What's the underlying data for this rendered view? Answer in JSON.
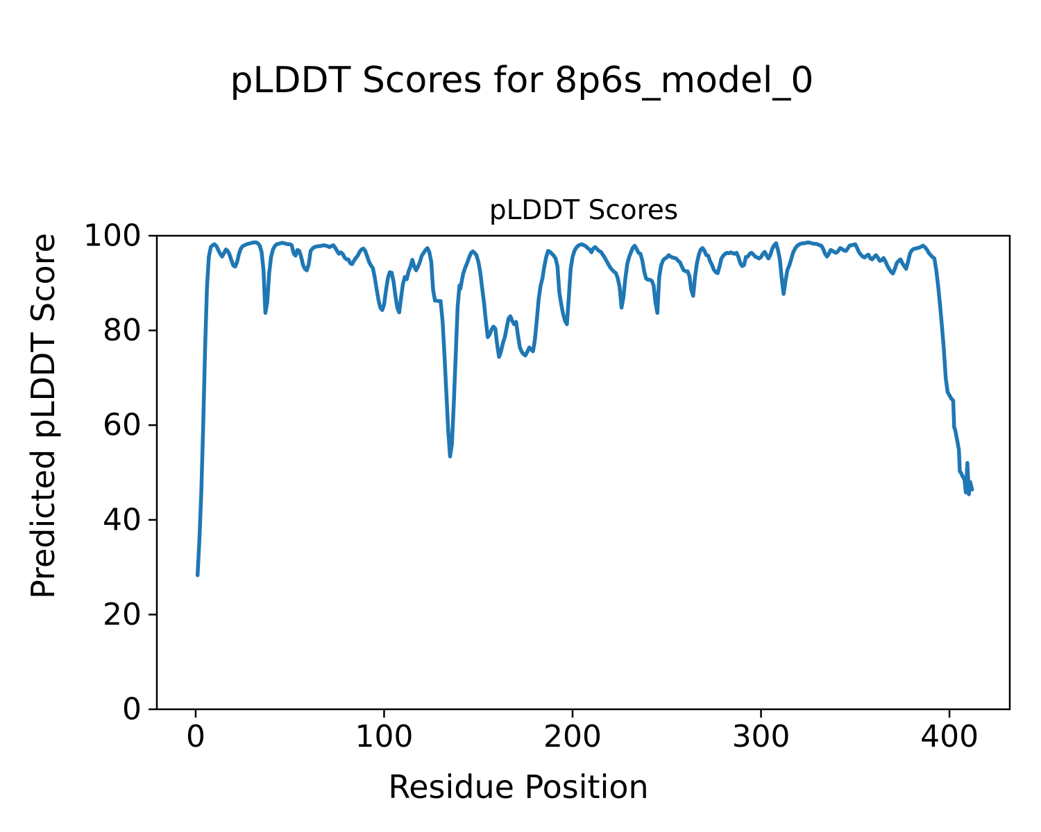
{
  "figure": {
    "title": "pLDDT Scores for 8p6s_model_0",
    "background": "#ffffff"
  },
  "chart_data": {
    "type": "line",
    "title": "pLDDT Scores",
    "xlabel": "Residue Position",
    "ylabel": "Predicted pLDDT Score",
    "line_color": "#1f77b4",
    "axis_color": "#000000",
    "xlim": [
      -20.6,
      432.0
    ],
    "ylim": [
      0,
      100
    ],
    "xticks": [
      0,
      100,
      200,
      300,
      400
    ],
    "yticks": [
      0,
      20,
      40,
      60,
      80,
      100
    ],
    "grid": false,
    "legend": null,
    "series_name": "pLDDT",
    "points": [
      [
        1,
        28.3
      ],
      [
        2,
        36
      ],
      [
        3,
        46
      ],
      [
        4,
        60
      ],
      [
        5,
        76
      ],
      [
        6,
        89
      ],
      [
        7,
        95.5
      ],
      [
        8,
        97.6
      ],
      [
        9,
        98
      ],
      [
        10,
        98.2
      ],
      [
        11,
        97.8
      ],
      [
        12,
        97
      ],
      [
        13,
        96.2
      ],
      [
        14,
        95.6
      ],
      [
        15,
        96.3
      ],
      [
        16,
        97.1
      ],
      [
        17,
        96.8
      ],
      [
        18,
        96
      ],
      [
        19,
        94.8
      ],
      [
        20,
        93.7
      ],
      [
        21,
        93.5
      ],
      [
        22,
        94.5
      ],
      [
        23,
        96.2
      ],
      [
        24,
        97.3
      ],
      [
        25,
        97.8
      ],
      [
        26,
        98
      ],
      [
        27,
        98.2
      ],
      [
        28,
        98.3
      ],
      [
        29,
        98.4
      ],
      [
        30,
        98.5
      ],
      [
        31,
        98.6
      ],
      [
        32,
        98.6
      ],
      [
        33,
        98.4
      ],
      [
        34,
        97.9
      ],
      [
        35,
        96.5
      ],
      [
        36,
        92.7
      ],
      [
        37,
        83.7
      ],
      [
        38,
        86
      ],
      [
        39,
        92
      ],
      [
        40,
        95.5
      ],
      [
        41,
        97.1
      ],
      [
        42,
        97.8
      ],
      [
        43,
        98.2
      ],
      [
        44,
        98.3
      ],
      [
        45,
        98.4
      ],
      [
        46,
        98.5
      ],
      [
        47,
        98.4
      ],
      [
        48,
        98.3
      ],
      [
        49,
        98.2
      ],
      [
        50,
        98.2
      ],
      [
        51,
        98
      ],
      [
        52,
        96.3
      ],
      [
        53,
        95.8
      ],
      [
        54,
        97
      ],
      [
        55,
        96.8
      ],
      [
        56,
        95.5
      ],
      [
        57,
        93.8
      ],
      [
        58,
        93
      ],
      [
        59,
        92.7
      ],
      [
        60,
        94
      ],
      [
        61,
        96.8
      ],
      [
        62,
        97.3
      ],
      [
        63,
        97.6
      ],
      [
        64,
        97.7
      ],
      [
        65,
        97.8
      ],
      [
        66,
        97.8
      ],
      [
        67,
        97.9
      ],
      [
        68,
        98
      ],
      [
        69,
        97.9
      ],
      [
        70,
        97.8
      ],
      [
        71,
        97.6
      ],
      [
        72,
        97.8
      ],
      [
        73,
        98
      ],
      [
        74,
        97.5
      ],
      [
        75,
        96.8
      ],
      [
        76,
        96.2
      ],
      [
        77,
        96.5
      ],
      [
        78,
        96.2
      ],
      [
        79,
        95.4
      ],
      [
        80,
        95
      ],
      [
        81,
        95
      ],
      [
        82,
        94.2
      ],
      [
        83,
        94
      ],
      [
        84,
        94.7
      ],
      [
        85,
        95.3
      ],
      [
        86,
        95.8
      ],
      [
        87,
        96.6
      ],
      [
        88,
        97.1
      ],
      [
        89,
        97.3
      ],
      [
        90,
        96.8
      ],
      [
        91,
        95.7
      ],
      [
        92,
        94.5
      ],
      [
        93,
        93.7
      ],
      [
        94,
        93.2
      ],
      [
        95,
        91.3
      ],
      [
        96,
        88.8
      ],
      [
        97,
        86.5
      ],
      [
        98,
        84.8
      ],
      [
        99,
        84.3
      ],
      [
        100,
        85.5
      ],
      [
        101,
        88.5
      ],
      [
        102,
        91
      ],
      [
        103,
        92.3
      ],
      [
        104,
        92.2
      ],
      [
        105,
        90.3
      ],
      [
        106,
        87.3
      ],
      [
        107,
        84.8
      ],
      [
        108,
        83.8
      ],
      [
        109,
        86.9
      ],
      [
        110,
        89.8
      ],
      [
        111,
        91.3
      ],
      [
        112,
        90.8
      ],
      [
        113,
        92.5
      ],
      [
        114,
        93.5
      ],
      [
        115,
        94.9
      ],
      [
        116,
        93.5
      ],
      [
        117,
        92.7
      ],
      [
        118,
        93.5
      ],
      [
        119,
        94.5
      ],
      [
        120,
        95.8
      ],
      [
        121,
        96.4
      ],
      [
        122,
        97
      ],
      [
        123,
        97.4
      ],
      [
        124,
        96.5
      ],
      [
        125,
        94.5
      ],
      [
        126,
        88.5
      ],
      [
        127,
        86.3
      ],
      [
        128,
        86.3
      ],
      [
        129,
        86.2
      ],
      [
        130,
        86.2
      ],
      [
        131,
        82
      ],
      [
        132,
        75
      ],
      [
        133,
        67
      ],
      [
        134,
        59
      ],
      [
        135,
        53.4
      ],
      [
        136,
        56
      ],
      [
        137,
        65
      ],
      [
        138,
        75
      ],
      [
        139,
        85
      ],
      [
        140,
        89.5
      ],
      [
        140.5,
        88.8
      ],
      [
        141,
        90
      ],
      [
        142,
        92
      ],
      [
        143,
        93.2
      ],
      [
        144,
        94.2
      ],
      [
        145,
        95.3
      ],
      [
        146,
        96.3
      ],
      [
        147,
        96.7
      ],
      [
        148,
        96.4
      ],
      [
        149,
        95.9
      ],
      [
        150,
        94.5
      ],
      [
        151,
        92.3
      ],
      [
        152,
        89
      ],
      [
        153,
        85.9
      ],
      [
        154,
        82
      ],
      [
        155,
        78.6
      ],
      [
        156,
        79.1
      ],
      [
        157,
        80.2
      ],
      [
        158,
        80.8
      ],
      [
        159,
        80.4
      ],
      [
        160,
        77
      ],
      [
        161,
        74.4
      ],
      [
        162,
        75.5
      ],
      [
        163,
        77.3
      ],
      [
        164,
        78.5
      ],
      [
        165,
        80.5
      ],
      [
        166,
        82.5
      ],
      [
        167,
        83
      ],
      [
        168,
        82
      ],
      [
        169,
        81.3
      ],
      [
        170,
        81.8
      ],
      [
        171,
        79
      ],
      [
        172,
        76.5
      ],
      [
        173,
        75.5
      ],
      [
        174,
        75
      ],
      [
        175,
        74.7
      ],
      [
        176,
        75.5
      ],
      [
        177,
        76.4
      ],
      [
        178,
        76
      ],
      [
        179,
        75.6
      ],
      [
        180,
        78
      ],
      [
        181,
        82
      ],
      [
        182,
        86.5
      ],
      [
        183,
        89.4
      ],
      [
        184,
        91
      ],
      [
        185,
        93.5
      ],
      [
        186,
        95.5
      ],
      [
        187,
        96.8
      ],
      [
        188,
        96.6
      ],
      [
        189,
        96.2
      ],
      [
        190,
        95.8
      ],
      [
        191,
        95.2
      ],
      [
        192,
        93.5
      ],
      [
        193,
        88
      ],
      [
        194,
        85.5
      ],
      [
        195,
        83.5
      ],
      [
        196,
        82
      ],
      [
        197,
        81.3
      ],
      [
        198,
        87
      ],
      [
        199,
        93
      ],
      [
        200,
        95.5
      ],
      [
        201,
        96.8
      ],
      [
        202,
        97.5
      ],
      [
        203,
        97.9
      ],
      [
        204,
        98.1
      ],
      [
        205,
        98.2
      ],
      [
        206,
        98
      ],
      [
        207,
        97.8
      ],
      [
        208,
        97.4
      ],
      [
        209,
        97.1
      ],
      [
        210,
        96.5
      ],
      [
        211,
        97.3
      ],
      [
        212,
        97.6
      ],
      [
        213,
        97.2
      ],
      [
        214,
        96.8
      ],
      [
        215,
        96.6
      ],
      [
        216,
        96
      ],
      [
        217,
        95.4
      ],
      [
        218,
        94.7
      ],
      [
        219,
        94
      ],
      [
        220,
        93.3
      ],
      [
        221,
        92.8
      ],
      [
        222,
        92.4
      ],
      [
        223,
        92.1
      ],
      [
        224,
        91
      ],
      [
        225,
        89.1
      ],
      [
        226,
        84.8
      ],
      [
        227,
        87
      ],
      [
        228,
        91
      ],
      [
        229,
        94
      ],
      [
        230,
        95.5
      ],
      [
        231,
        96.5
      ],
      [
        232,
        97.5
      ],
      [
        233,
        97.9
      ],
      [
        234,
        97.2
      ],
      [
        235,
        96.4
      ],
      [
        236,
        96.2
      ],
      [
        237,
        94.8
      ],
      [
        238,
        92.5
      ],
      [
        239,
        91
      ],
      [
        240,
        90.7
      ],
      [
        241,
        90.7
      ],
      [
        242,
        90.5
      ],
      [
        243,
        89.5
      ],
      [
        244,
        85.9
      ],
      [
        245,
        83.7
      ],
      [
        246,
        91.3
      ],
      [
        247,
        93.7
      ],
      [
        248,
        94.8
      ],
      [
        249,
        95.2
      ],
      [
        250,
        95.4
      ],
      [
        251,
        95.9
      ],
      [
        252,
        95.6
      ],
      [
        253,
        95.4
      ],
      [
        254,
        95.3
      ],
      [
        255,
        95.2
      ],
      [
        256,
        94.7
      ],
      [
        257,
        94.4
      ],
      [
        258,
        93.5
      ],
      [
        259,
        92.7
      ],
      [
        260,
        92.5
      ],
      [
        261,
        92.5
      ],
      [
        262,
        91.5
      ],
      [
        263,
        88.6
      ],
      [
        264,
        87.3
      ],
      [
        265,
        91.3
      ],
      [
        266,
        94.2
      ],
      [
        267,
        96
      ],
      [
        268,
        97.1
      ],
      [
        269,
        97.4
      ],
      [
        270,
        96.8
      ],
      [
        271,
        95.9
      ],
      [
        272,
        95.8
      ],
      [
        273,
        94.6
      ],
      [
        274,
        93.8
      ],
      [
        275,
        92.8
      ],
      [
        276,
        92.3
      ],
      [
        277,
        92.1
      ],
      [
        278,
        93.5
      ],
      [
        279,
        95.2
      ],
      [
        280,
        95.8
      ],
      [
        281,
        96.2
      ],
      [
        282,
        96.4
      ],
      [
        283,
        96.3
      ],
      [
        284,
        96.5
      ],
      [
        285,
        96.3
      ],
      [
        286,
        96.2
      ],
      [
        287,
        96.4
      ],
      [
        288,
        95.5
      ],
      [
        289,
        94.2
      ],
      [
        290,
        93.6
      ],
      [
        291,
        93.8
      ],
      [
        292,
        95.5
      ],
      [
        293,
        95.6
      ],
      [
        294,
        96.2
      ],
      [
        295,
        96.4
      ],
      [
        296,
        96
      ],
      [
        297,
        95.6
      ],
      [
        298,
        95.4
      ],
      [
        299,
        95.2
      ],
      [
        300,
        95.5
      ],
      [
        301,
        96.2
      ],
      [
        302,
        96.6
      ],
      [
        303,
        95.8
      ],
      [
        304,
        95.2
      ],
      [
        305,
        96
      ],
      [
        306,
        97.3
      ],
      [
        307,
        98
      ],
      [
        308,
        98.4
      ],
      [
        309,
        97
      ],
      [
        310,
        95
      ],
      [
        311,
        91
      ],
      [
        312,
        87.7
      ],
      [
        313,
        90.5
      ],
      [
        314,
        92.8
      ],
      [
        315,
        93.7
      ],
      [
        316,
        95
      ],
      [
        317,
        96.4
      ],
      [
        318,
        97.2
      ],
      [
        319,
        97.8
      ],
      [
        320,
        98.1
      ],
      [
        321,
        98.3
      ],
      [
        322,
        98.4
      ],
      [
        323,
        98.4
      ],
      [
        324,
        98.5
      ],
      [
        325,
        98.6
      ],
      [
        326,
        98.5
      ],
      [
        327,
        98.4
      ],
      [
        328,
        98.3
      ],
      [
        329,
        98.3
      ],
      [
        330,
        98.2
      ],
      [
        331,
        98
      ],
      [
        332,
        97.9
      ],
      [
        333,
        97.2
      ],
      [
        334,
        96.2
      ],
      [
        335,
        95.6
      ],
      [
        336,
        96.2
      ],
      [
        337,
        97
      ],
      [
        338,
        96.8
      ],
      [
        339,
        96.5
      ],
      [
        340,
        96.4
      ],
      [
        341,
        96.8
      ],
      [
        342,
        97.4
      ],
      [
        343,
        97.2
      ],
      [
        344,
        96.9
      ],
      [
        345,
        96.8
      ],
      [
        346,
        97.3
      ],
      [
        347,
        97.9
      ],
      [
        348,
        98
      ],
      [
        349,
        98.1
      ],
      [
        350,
        98.2
      ],
      [
        351,
        97.4
      ],
      [
        352,
        96.5
      ],
      [
        353,
        96
      ],
      [
        354,
        95.6
      ],
      [
        355,
        95.4
      ],
      [
        356,
        95.8
      ],
      [
        357,
        96
      ],
      [
        358,
        95.2
      ],
      [
        359,
        95
      ],
      [
        360,
        95.5
      ],
      [
        361,
        95.9
      ],
      [
        362,
        95.4
      ],
      [
        363,
        94.7
      ],
      [
        364,
        94.8
      ],
      [
        365,
        95.3
      ],
      [
        366,
        94.6
      ],
      [
        367,
        93.7
      ],
      [
        368,
        93
      ],
      [
        369,
        92.4
      ],
      [
        370,
        92
      ],
      [
        371,
        93
      ],
      [
        372,
        94.2
      ],
      [
        373,
        94.7
      ],
      [
        374,
        95
      ],
      [
        375,
        94.2
      ],
      [
        376,
        93.6
      ],
      [
        377,
        93
      ],
      [
        378,
        94.5
      ],
      [
        379,
        96.2
      ],
      [
        380,
        96.9
      ],
      [
        381,
        97.2
      ],
      [
        382,
        97.3
      ],
      [
        383,
        97.4
      ],
      [
        384,
        97.5
      ],
      [
        385,
        97.7
      ],
      [
        386,
        97.9
      ],
      [
        387,
        97.6
      ],
      [
        388,
        97.1
      ],
      [
        389,
        96.4
      ],
      [
        390,
        95.9
      ],
      [
        391,
        95.5
      ],
      [
        392,
        95.2
      ],
      [
        393,
        92.7
      ],
      [
        394,
        89.4
      ],
      [
        395,
        85.4
      ],
      [
        396,
        81
      ],
      [
        397,
        76
      ],
      [
        398,
        70
      ],
      [
        399,
        67
      ],
      [
        400,
        66.3
      ],
      [
        401,
        65.6
      ],
      [
        402,
        65.2
      ],
      [
        402.5,
        59.5
      ],
      [
        403,
        59
      ],
      [
        404,
        57
      ],
      [
        405,
        54.8
      ],
      [
        405.5,
        50.3
      ],
      [
        406,
        50
      ],
      [
        407,
        49.2
      ],
      [
        408,
        48.5
      ],
      [
        408.7,
        45.8
      ],
      [
        409.5,
        52
      ],
      [
        410.3,
        45.4
      ],
      [
        411,
        48
      ],
      [
        412,
        46.4
      ]
    ]
  }
}
